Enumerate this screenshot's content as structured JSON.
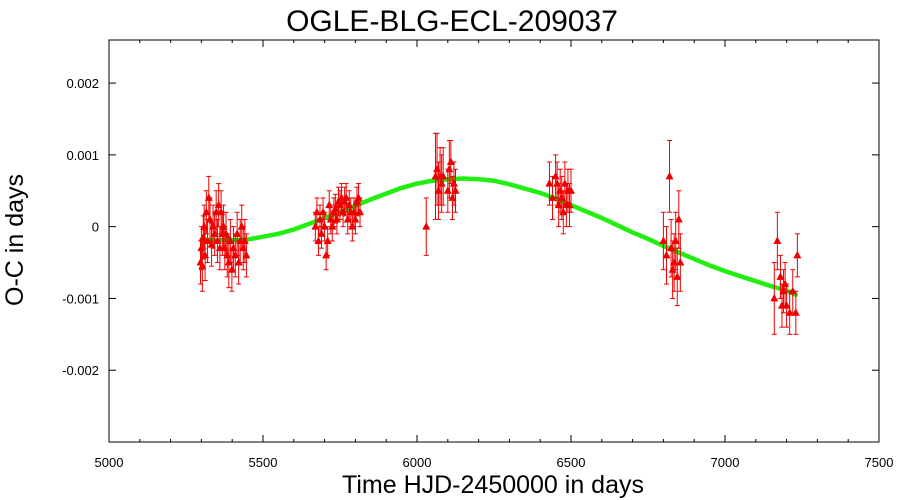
{
  "chart_data": {
    "type": "scatter",
    "title": "OGLE-BLG-ECL-209037",
    "xlabel": "Time HJD-2450000 in days",
    "ylabel": "O-C in days",
    "xlim": [
      5000,
      7500
    ],
    "ylim": [
      -0.003,
      0.0026
    ],
    "xticks": [
      5000,
      5500,
      6000,
      6500,
      7000,
      7500
    ],
    "xtick_labels": [
      "5000",
      "5500",
      "6000",
      "6500",
      "7000",
      "7500"
    ],
    "yticks": [
      0.002,
      0.001,
      0,
      -0.001,
      -0.002
    ],
    "ytick_labels": [
      "0.002",
      "0.001",
      "0",
      "-0.001",
      "-0.002"
    ],
    "grid": false,
    "legend": "none",
    "colors": {
      "points": "#ee0000",
      "fit": "#22ee11",
      "axes": "#000000"
    },
    "series": [
      {
        "kind": "points-with-errorbars",
        "marker": "triangle",
        "x": [
          5297,
          5300,
          5303,
          5306,
          5309,
          5312,
          5316,
          5320,
          5324,
          5328,
          5333,
          5338,
          5343,
          5348,
          5352,
          5356,
          5360,
          5364,
          5368,
          5372,
          5376,
          5380,
          5384,
          5389,
          5394,
          5399,
          5404,
          5410,
          5416,
          5421,
          5426,
          5431,
          5436,
          5441,
          5446,
          5670,
          5675,
          5680,
          5685,
          5690,
          5695,
          5700,
          5705,
          5710,
          5715,
          5720,
          5725,
          5730,
          5735,
          5740,
          5745,
          5750,
          5755,
          5760,
          5765,
          5770,
          5775,
          5780,
          5785,
          5790,
          5795,
          5800,
          5805,
          5810,
          5815,
          6030,
          6060,
          6065,
          6070,
          6075,
          6080,
          6085,
          6100,
          6105,
          6110,
          6115,
          6120,
          6125,
          6430,
          6440,
          6450,
          6455,
          6460,
          6465,
          6470,
          6475,
          6480,
          6485,
          6490,
          6495,
          6500,
          6800,
          6810,
          6820,
          6825,
          6830,
          6835,
          6840,
          6845,
          6850,
          6855,
          7160,
          7170,
          7180,
          7185,
          7190,
          7195,
          7200,
          7210,
          7220,
          7230,
          7235
        ],
        "y": [
          -0.0005,
          -0.0003,
          -0.00055,
          -0.00015,
          0.0,
          -0.0004,
          0.0002,
          -0.0002,
          0.0004,
          0.0001,
          -0.00025,
          0.0,
          -0.0001,
          0.0002,
          -0.0002,
          0.0003,
          -0.0003,
          0.0002,
          -0.0001,
          0.0,
          -0.0003,
          -0.0001,
          -0.0004,
          -0.0005,
          -0.0002,
          -0.0006,
          -0.0003,
          -0.0004,
          -0.0001,
          -0.0005,
          -0.0002,
          0.0,
          -0.0003,
          -0.0002,
          -0.0004,
          0.0,
          0.0002,
          -0.0002,
          0.0001,
          -0.0001,
          0.0002,
          0.0,
          -0.0004,
          -0.0002,
          0.0003,
          0.0001,
          0.0,
          0.0002,
          0.00025,
          0.0001,
          0.00035,
          0.0003,
          0.0004,
          0.0002,
          0.00035,
          0.0004,
          0.0001,
          0.0003,
          0.0002,
          0.0,
          0.0002,
          0.0001,
          0.00035,
          0.0004,
          0.0002,
          0.0,
          0.0007,
          0.0008,
          0.0005,
          0.0007,
          0.0006,
          0.0007,
          0.0005,
          0.0008,
          0.0009,
          0.0004,
          0.0006,
          0.0005,
          0.0006,
          0.0004,
          0.0007,
          0.0006,
          0.0003,
          0.0005,
          0.0004,
          0.0002,
          0.0006,
          0.0003,
          0.0005,
          0.0003,
          0.0005,
          -0.0002,
          -0.0004,
          0.0007,
          -0.0003,
          -0.0006,
          -0.0005,
          -0.0002,
          -0.0007,
          0.0001,
          -0.0005,
          -0.001,
          -0.0002,
          -0.0007,
          -0.0011,
          -0.0009,
          -0.0008,
          -0.0011,
          -0.0012,
          -0.0009,
          -0.0012,
          -0.0004
        ],
        "yerr": [
          0.0003,
          0.0003,
          0.00035,
          0.0003,
          0.0003,
          0.00035,
          0.0003,
          0.0003,
          0.0003,
          0.0003,
          0.0003,
          0.0003,
          0.0003,
          0.0003,
          0.0003,
          0.0003,
          0.0003,
          0.0003,
          0.0003,
          0.0003,
          0.0003,
          0.0003,
          0.0003,
          0.00035,
          0.0003,
          0.0003,
          0.0003,
          0.0003,
          0.0003,
          0.0003,
          0.0003,
          0.0003,
          0.0003,
          0.0003,
          0.0003,
          0.0002,
          0.0002,
          0.0002,
          0.0002,
          0.0002,
          0.0002,
          0.0002,
          0.0002,
          0.0002,
          0.0002,
          0.0002,
          0.0002,
          0.0002,
          0.0002,
          0.0002,
          0.0002,
          0.0002,
          0.0002,
          0.0002,
          0.0002,
          0.0002,
          0.0002,
          0.0002,
          0.0002,
          0.0002,
          0.0002,
          0.0002,
          0.0002,
          0.0002,
          0.0002,
          0.0004,
          0.0006,
          0.0005,
          0.0004,
          0.0004,
          0.0004,
          0.0004,
          0.0003,
          0.0004,
          0.0003,
          0.0003,
          0.0003,
          0.0003,
          0.0003,
          0.0003,
          0.0003,
          0.0003,
          0.0003,
          0.0003,
          0.0003,
          0.0003,
          0.0003,
          0.0003,
          0.0003,
          0.0003,
          0.0003,
          0.0004,
          0.0004,
          0.0005,
          0.0004,
          0.0004,
          0.0004,
          0.0004,
          0.0004,
          0.0004,
          0.0004,
          0.0005,
          0.0004,
          0.0003,
          0.0003,
          0.0003,
          0.0003,
          0.0003,
          0.0003,
          0.0003,
          0.0003,
          0.0003
        ]
      },
      {
        "kind": "fit-curve",
        "x": [
          5300,
          5350,
          5400,
          5450,
          5500,
          5550,
          5600,
          5650,
          5700,
          5750,
          5800,
          5850,
          5900,
          5950,
          6000,
          6050,
          6100,
          6150,
          6200,
          6250,
          6300,
          6350,
          6400,
          6450,
          6500,
          6550,
          6600,
          6650,
          6700,
          6750,
          6800,
          6850,
          6900,
          6950,
          7000,
          7050,
          7100,
          7150,
          7200,
          7230
        ],
        "y": [
          -0.00018,
          -0.00019,
          -0.00019,
          -0.00018,
          -0.00014,
          -0.0001,
          -4e-05,
          4e-05,
          0.00012,
          0.0002,
          0.00029,
          0.00038,
          0.00046,
          0.00054,
          0.0006,
          0.00064,
          0.00066,
          0.00067,
          0.00066,
          0.00064,
          0.00059,
          0.00053,
          0.00047,
          0.00039,
          0.0003,
          0.00021,
          0.00012,
          2e-05,
          -8e-05,
          -0.00017,
          -0.00027,
          -0.00036,
          -0.00045,
          -0.00054,
          -0.00062,
          -0.00069,
          -0.00076,
          -0.00083,
          -0.00089,
          -0.00095
        ]
      }
    ]
  }
}
